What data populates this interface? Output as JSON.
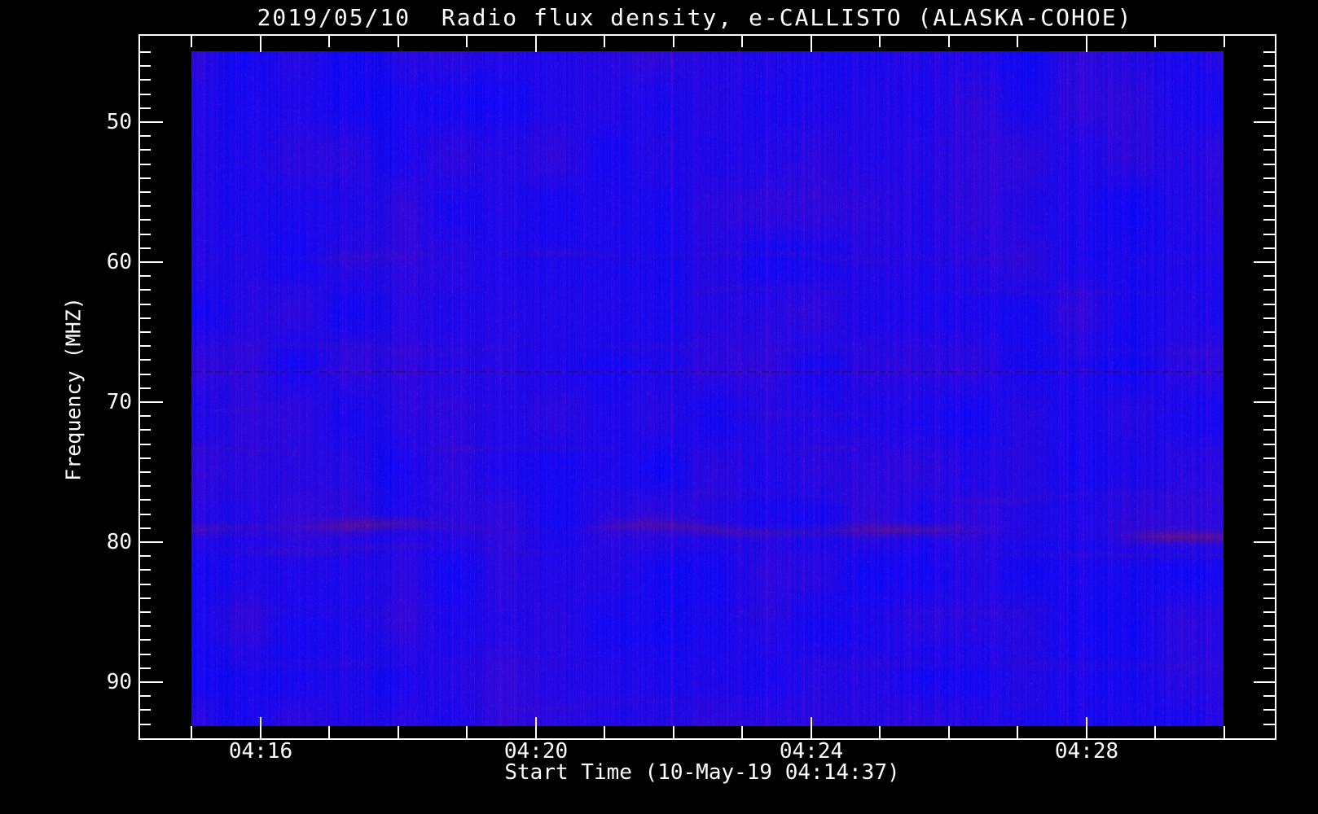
{
  "chart_data": {
    "type": "heatmap",
    "title": "2019/05/10  Radio flux density, e-CALLISTO (ALASKA-COHOE)",
    "xlabel": "Start Time (10-May-19 04:14:37)",
    "ylabel": "Frequency (MHZ)",
    "legend": "none",
    "grid": "off",
    "y_axis": {
      "unit": "MHz",
      "direction": "increasing downward",
      "range_mhz": [
        44.9,
        93.1
      ],
      "major_ticks": [
        {
          "label": "50",
          "freq_mhz": 50
        },
        {
          "label": "60",
          "freq_mhz": 60
        },
        {
          "label": "70",
          "freq_mhz": 70
        },
        {
          "label": "80",
          "freq_mhz": 80
        },
        {
          "label": "90",
          "freq_mhz": 90
        }
      ],
      "minor_tick_step_mhz": 1,
      "minor_tick_range_mhz": [
        45,
        94
      ]
    },
    "x_axis": {
      "unit": "time (UT)",
      "start_time_label": "04:14:37",
      "major_ticks": [
        {
          "label": "04:16",
          "minute": 16
        },
        {
          "label": "04:20",
          "minute": 20
        },
        {
          "label": "04:24",
          "minute": 24
        },
        {
          "label": "04:28",
          "minute": 28
        }
      ],
      "minor_tick_step": "1 min",
      "minor_tick_minutes": [
        15,
        16,
        17,
        18,
        19,
        20,
        21,
        22,
        23,
        24,
        25,
        26,
        27,
        28,
        29,
        30
      ]
    },
    "colors": {
      "figure_background": "#000000",
      "axis_and_text": "#ffffff",
      "spectrogram_base_blue": "#1e08e8",
      "band_tint_purple": "#55149a",
      "interference_line_dark": "#1c0896"
    },
    "spectrogram": {
      "description": "nearly uniform quiet blue background with faint purple blotch noise and fine vertical striping; no radio burst",
      "noise": {
        "column_amp": 13,
        "speckle_rate": 0.22,
        "speckle_amp": 30,
        "blotch_amp": 15
      },
      "interference_line": {
        "freq_mhz": 67.8,
        "style": "dashed",
        "strength": 0.85
      },
      "bands": [
        {
          "freq_mhz": 59.5,
          "half_width_mhz": 0.8,
          "strength": 0.1,
          "slope_mhz": 0.3
        },
        {
          "freq_mhz": 62.0,
          "half_width_mhz": 0.6,
          "strength": 0.07,
          "slope_mhz": 0.0
        },
        {
          "freq_mhz": 66.2,
          "half_width_mhz": 1.0,
          "strength": 0.08,
          "slope_mhz": 0.4
        },
        {
          "freq_mhz": 70.6,
          "half_width_mhz": 0.7,
          "strength": 0.06,
          "slope_mhz": 0.2
        },
        {
          "freq_mhz": 73.2,
          "half_width_mhz": 0.8,
          "strength": 0.07,
          "slope_mhz": 0.3
        },
        {
          "freq_mhz": 76.6,
          "half_width_mhz": 0.7,
          "strength": 0.1,
          "slope_mhz": 0.5
        },
        {
          "freq_mhz": 79.1,
          "half_width_mhz": 1.0,
          "strength": 0.42,
          "slope_mhz": 0.5
        },
        {
          "freq_mhz": 80.6,
          "half_width_mhz": 0.6,
          "strength": 0.12,
          "slope_mhz": 0.4
        },
        {
          "freq_mhz": 85.0,
          "half_width_mhz": 1.2,
          "strength": 0.05,
          "slope_mhz": 0.0
        },
        {
          "freq_mhz": 88.6,
          "half_width_mhz": 1.0,
          "strength": 0.06,
          "slope_mhz": 0.0
        },
        {
          "freq_mhz": 91.6,
          "half_width_mhz": 0.8,
          "strength": 0.06,
          "slope_mhz": 0.0
        }
      ]
    }
  }
}
